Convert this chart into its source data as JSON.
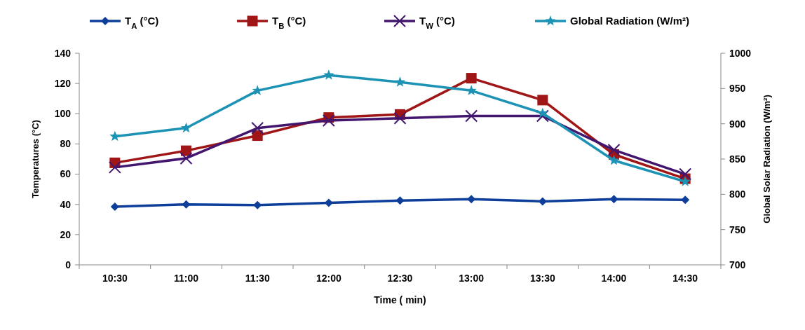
{
  "chart_data": {
    "type": "line",
    "categories": [
      "10:30",
      "11:00",
      "11:30",
      "12:00",
      "12:30",
      "13:00",
      "13:30",
      "14:00",
      "14:30"
    ],
    "xlabel": "Time  ( min)",
    "ylabel": "Temperatures (°C)",
    "y2label": "Global Solar Radiation (W/m²)",
    "ylim": [
      0,
      140
    ],
    "yticks": [
      0,
      20,
      40,
      60,
      80,
      100,
      120,
      140
    ],
    "y2lim": [
      700,
      1000
    ],
    "y2ticks": [
      700,
      750,
      800,
      850,
      900,
      950,
      1000
    ],
    "legend": "top",
    "grid": false,
    "series": [
      {
        "name": "T$_{A}$   (°C)",
        "color": "#0d3f9a",
        "marker": "diamond",
        "values": [
          38.5,
          40,
          39.5,
          41,
          42.5,
          43.5,
          42,
          43.5,
          43
        ]
      },
      {
        "name": "T$_{B}$   (°C)",
        "color": "#a01616",
        "marker": "square",
        "values": [
          67.5,
          75.5,
          85.5,
          97.5,
          99.5,
          123.5,
          109,
          73,
          57
        ]
      },
      {
        "name": "T$_{W}$   (°C)",
        "color": "#42166e",
        "marker": "cross",
        "values": [
          64.5,
          70.5,
          90.5,
          95.5,
          97,
          98.5,
          98.5,
          76,
          60
        ]
      },
      {
        "name": "Global Radiation  (W/m²)",
        "color": "#1c93b5",
        "marker": "star",
        "axis": "y2",
        "values": [
          882,
          894,
          947,
          969,
          959,
          947,
          915,
          848,
          818
        ]
      }
    ]
  }
}
